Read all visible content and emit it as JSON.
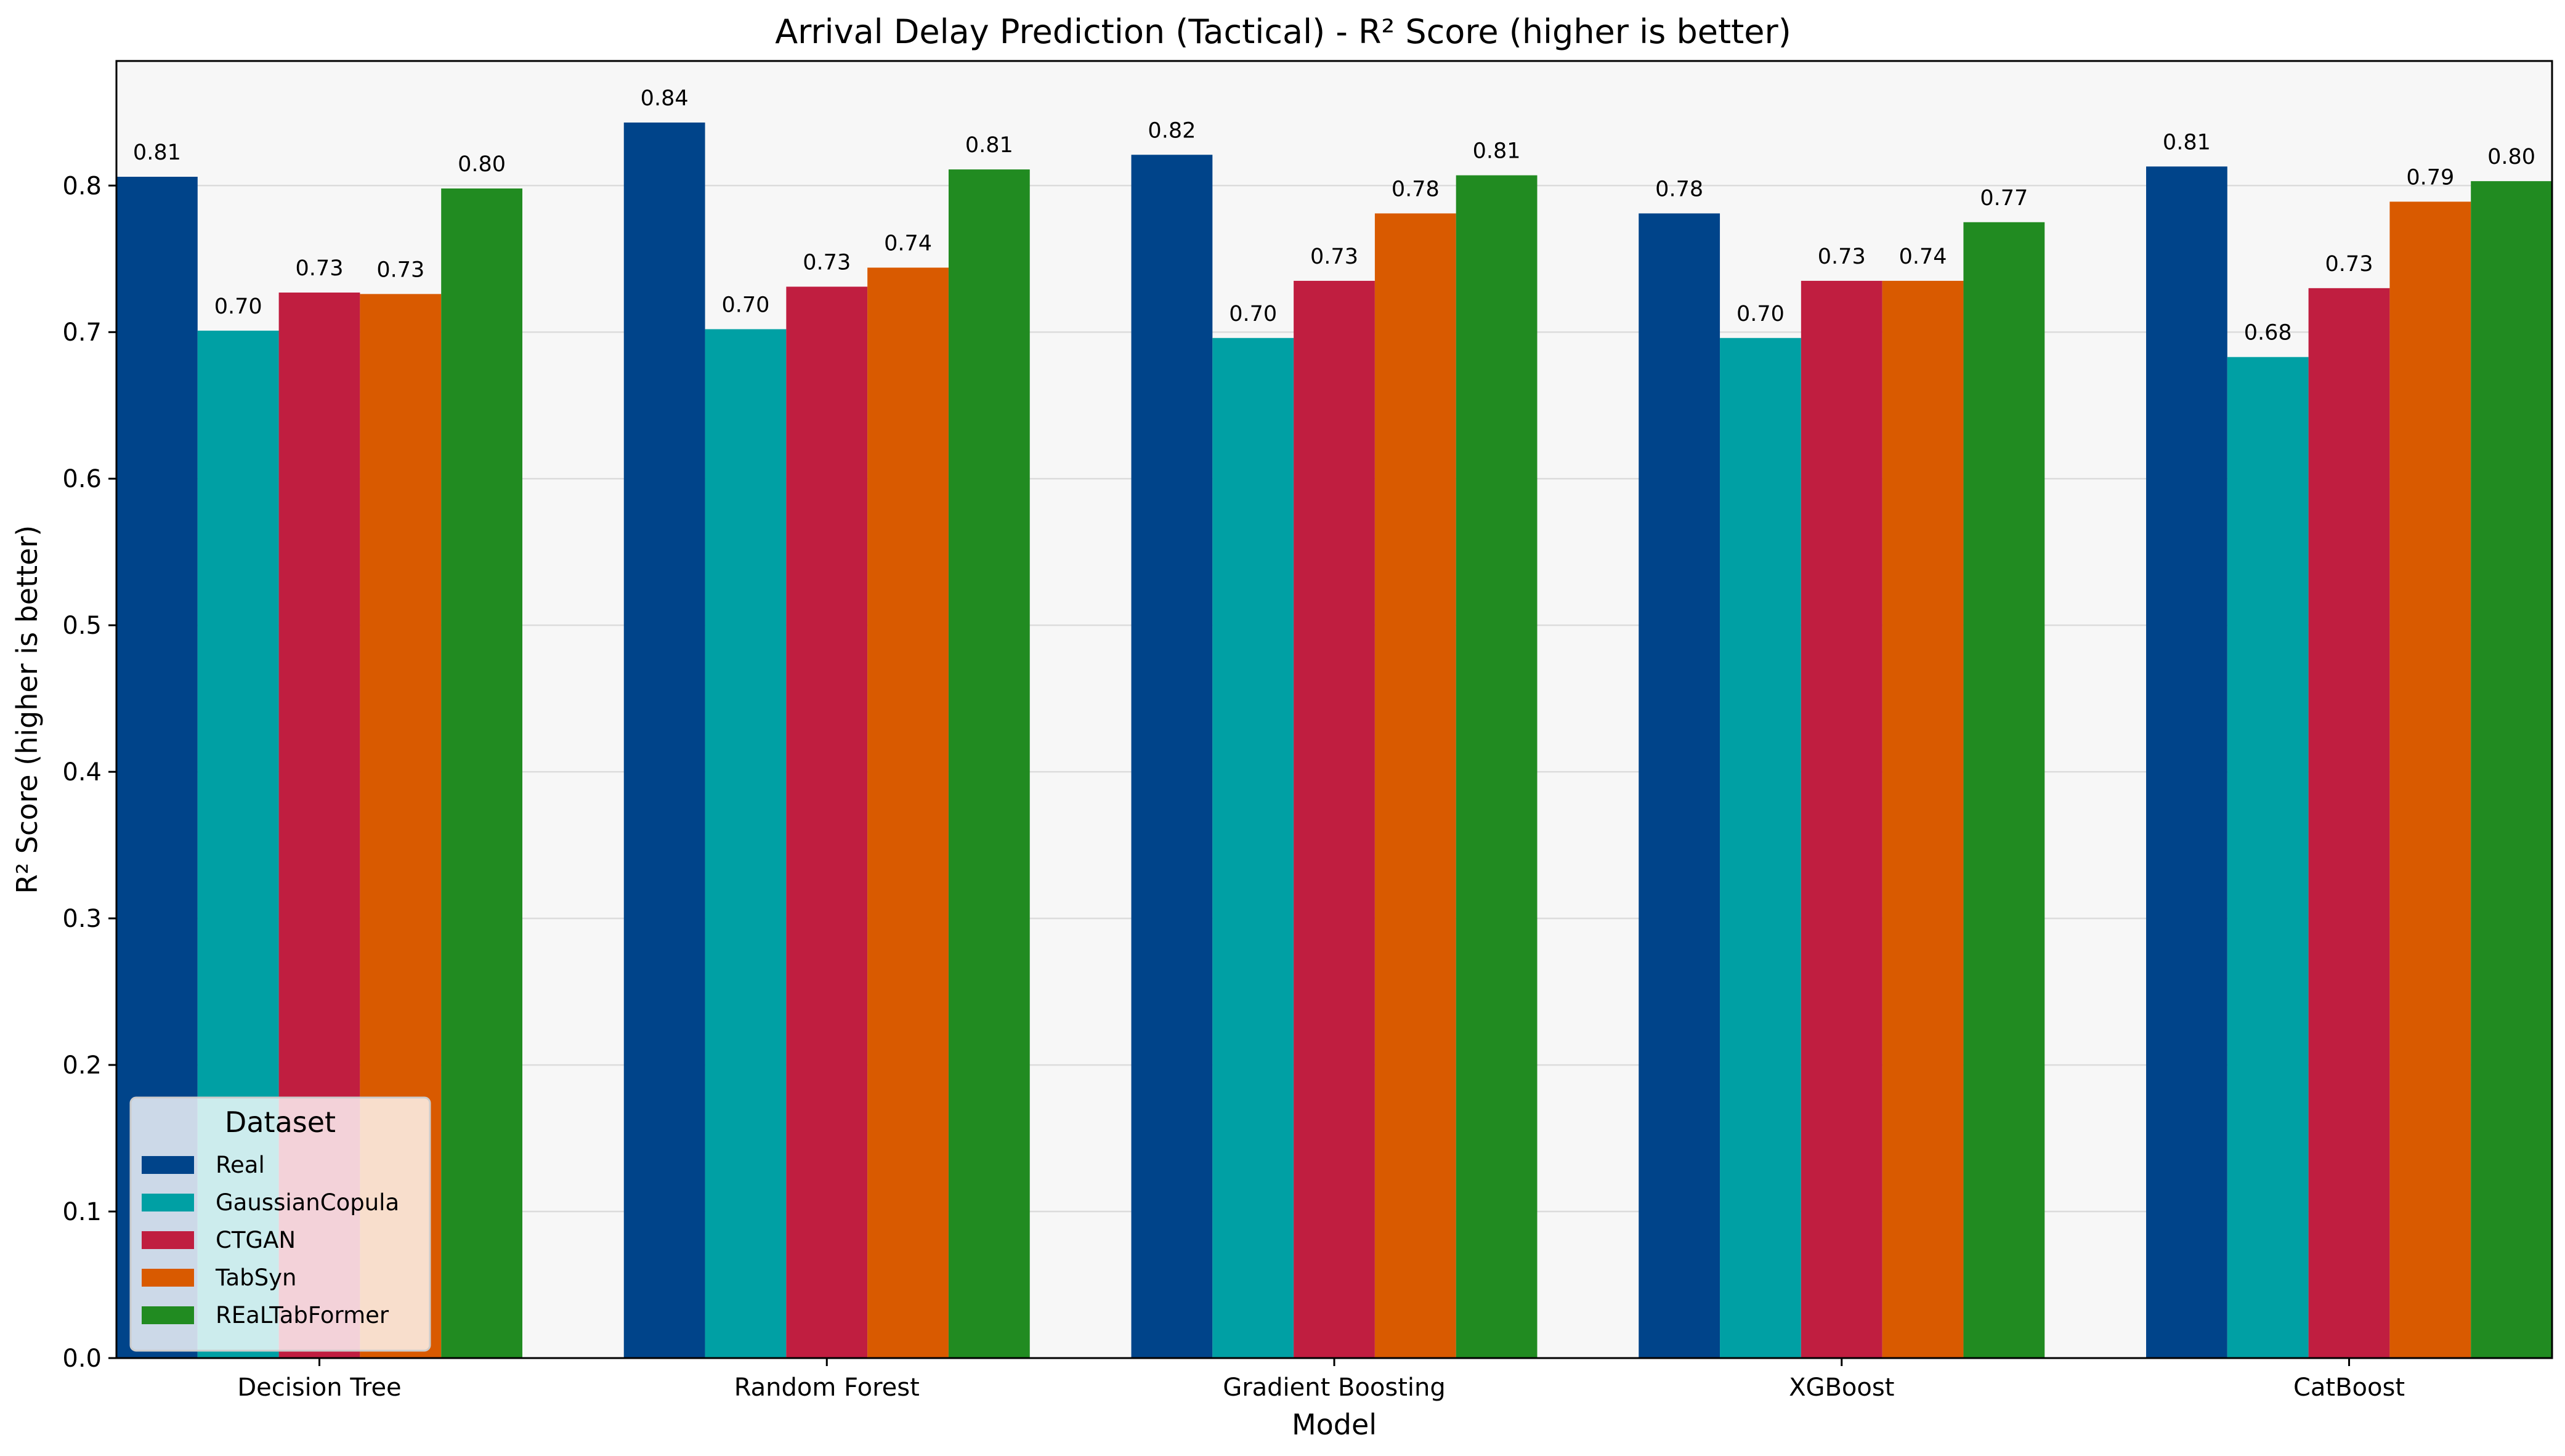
{
  "chart_data": {
    "type": "bar",
    "title": "Arrival Delay Prediction (Tactical) - R² Score (higher is better)",
    "xlabel": "Model",
    "ylabel": "R² Score (higher is better)",
    "ylim": [
      0,
      0.885
    ],
    "yticks": [
      0.0,
      0.1,
      0.2,
      0.3,
      0.4,
      0.5,
      0.6,
      0.7,
      0.8
    ],
    "ytick_labels": [
      "0.0",
      "0.1",
      "0.2",
      "0.3",
      "0.4",
      "0.5",
      "0.6",
      "0.7",
      "0.8"
    ],
    "grid": "horizontal",
    "legend_title": "Dataset",
    "legend_position": "lower-left",
    "categories": [
      "Decision Tree",
      "Random Forest",
      "Gradient Boosting",
      "XGBoost",
      "CatBoost"
    ],
    "series": [
      {
        "name": "Real",
        "color": "#00448a",
        "values": [
          0.806,
          0.843,
          0.821,
          0.781,
          0.813
        ],
        "labels": [
          "0.81",
          "0.84",
          "0.82",
          "0.78",
          "0.81"
        ]
      },
      {
        "name": "GaussianCopula",
        "color": "#00a0a4",
        "values": [
          0.701,
          0.702,
          0.696,
          0.696,
          0.683
        ],
        "labels": [
          "0.70",
          "0.70",
          "0.70",
          "0.70",
          "0.68"
        ]
      },
      {
        "name": "CTGAN",
        "color": "#c01e40",
        "values": [
          0.727,
          0.731,
          0.735,
          0.735,
          0.73
        ],
        "labels": [
          "0.73",
          "0.73",
          "0.73",
          "0.73",
          "0.73"
        ]
      },
      {
        "name": "TabSyn",
        "color": "#d95a00",
        "values": [
          0.726,
          0.744,
          0.781,
          0.735,
          0.789
        ],
        "labels": [
          "0.73",
          "0.74",
          "0.78",
          "0.74",
          "0.79"
        ]
      },
      {
        "name": "REaLTabFormer",
        "color": "#218b21",
        "values": [
          0.798,
          0.811,
          0.807,
          0.775,
          0.803
        ],
        "labels": [
          "0.80",
          "0.81",
          "0.81",
          "0.77",
          "0.80"
        ]
      }
    ]
  }
}
